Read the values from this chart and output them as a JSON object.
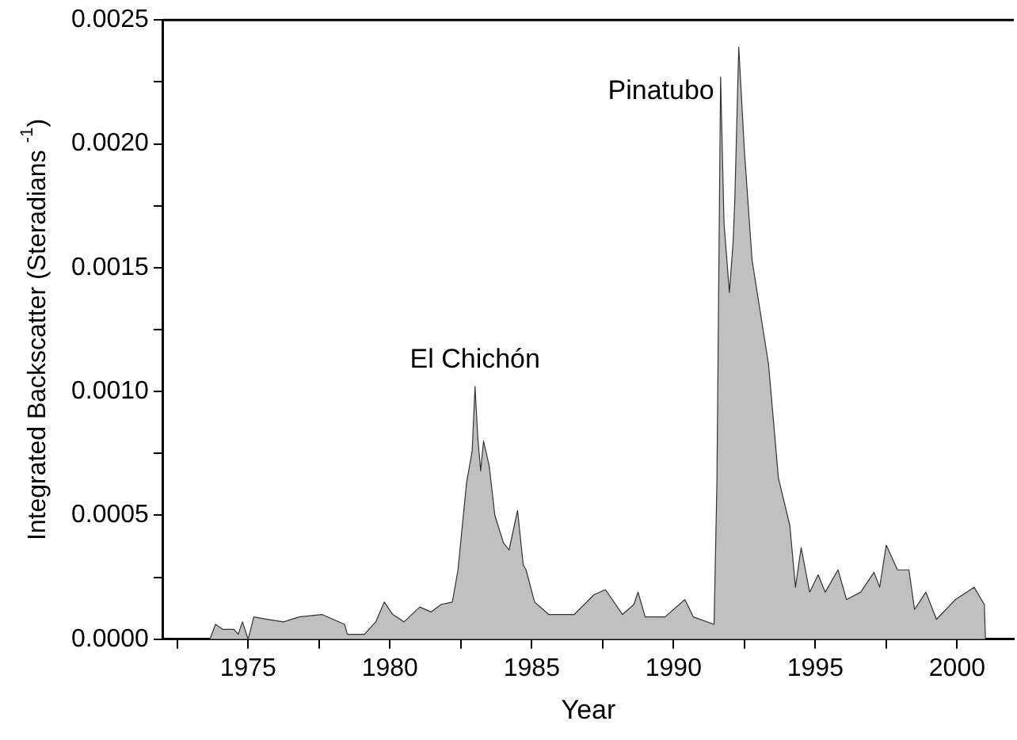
{
  "chart_data": {
    "type": "area",
    "xlabel": "Year",
    "ylabel": "Integrated Backscatter (Steradians $^{-1}$)",
    "x": [
      1972.3,
      1973.65,
      1973.85,
      1974.1,
      1974.5,
      1974.65,
      1974.8,
      1975.0,
      1975.2,
      1975.7,
      1976.25,
      1976.8,
      1977.6,
      1978.4,
      1978.5,
      1979.1,
      1979.5,
      1979.8,
      1980.1,
      1980.5,
      1981.05,
      1981.45,
      1981.8,
      1982.2,
      1982.4,
      1982.7,
      1982.9,
      1983.0,
      1983.1,
      1983.2,
      1983.3,
      1983.5,
      1983.7,
      1984.0,
      1984.2,
      1984.5,
      1984.7,
      1984.8,
      1985.1,
      1985.6,
      1986.5,
      1987.2,
      1987.6,
      1988.2,
      1988.6,
      1988.75,
      1989.0,
      1989.7,
      1990.4,
      1990.7,
      1991.43,
      1991.53,
      1991.66,
      1991.78,
      1991.97,
      1992.1,
      1992.16,
      1992.3,
      1992.5,
      1992.77,
      1993.35,
      1993.7,
      1994.1,
      1994.3,
      1994.5,
      1994.8,
      1995.1,
      1995.35,
      1995.8,
      1996.1,
      1996.6,
      1997.07,
      1997.27,
      1997.5,
      1997.9,
      1998.3,
      1998.5,
      1998.9,
      1999.27,
      1999.94,
      2000.6,
      2000.96,
      2001.0
    ],
    "series": [
      {
        "color": "#c0c0c0",
        "values": [
          0,
          0,
          6e-05,
          4e-05,
          4e-05,
          2e-05,
          7e-05,
          0,
          9e-05,
          8e-05,
          7e-05,
          9e-05,
          0.0001,
          6e-05,
          2e-05,
          2e-05,
          7e-05,
          0.00015,
          0.0001,
          7e-05,
          0.00013,
          0.00011,
          0.00014,
          0.00015,
          0.00028,
          0.00063,
          0.00076,
          0.00102,
          0.00081,
          0.00068,
          0.0008,
          0.0007,
          0.0005,
          0.00039,
          0.00036,
          0.00052,
          0.0003,
          0.00028,
          0.00015,
          0.0001,
          0.0001,
          0.00018,
          0.0002,
          0.0001,
          0.00014,
          0.00019,
          9e-05,
          9e-05,
          0.00016,
          9e-05,
          6e-05,
          0.00063,
          0.00227,
          0.00168,
          0.0014,
          0.0016,
          0.00177,
          0.00239,
          0.00197,
          0.00153,
          0.00111,
          0.00065,
          0.00046,
          0.00021,
          0.00037,
          0.00019,
          0.00026,
          0.00019,
          0.00028,
          0.00016,
          0.00019,
          0.00027,
          0.00021,
          0.00038,
          0.00028,
          0.00028,
          0.00012,
          0.00019,
          8e-05,
          0.00016,
          0.00021,
          0.00014,
          0
        ]
      }
    ],
    "xlim": [
      1972,
      2002
    ],
    "xticks": [
      {
        "value": 1972.5,
        "label": null
      },
      1975,
      {
        "value": 1977.5,
        "label": null
      },
      1980,
      {
        "value": 1982.5,
        "label": null
      },
      1985,
      {
        "value": 1987.5,
        "label": null
      },
      1990,
      {
        "value": 1992.5,
        "label": null
      },
      1995,
      {
        "value": 1997.5,
        "label": null
      },
      2000
    ],
    "ylim": [
      0,
      0.0025
    ],
    "yticks": [
      {
        "value": 0,
        "label": "0.0000"
      },
      {
        "value": 0.00025,
        "label": null
      },
      {
        "value": 0.0005,
        "label": "0.0005"
      },
      {
        "value": 0.00075,
        "label": null
      },
      {
        "value": 0.001,
        "label": "0.0010"
      },
      {
        "value": 0.00125,
        "label": null
      },
      {
        "value": 0.0015,
        "label": "0.0015"
      },
      {
        "value": 0.00175,
        "label": null
      },
      {
        "value": 0.002,
        "label": "0.0020"
      },
      {
        "value": 0.00225,
        "label": null
      },
      {
        "value": 0.0025,
        "label": "0.0025"
      }
    ],
    "annotations": [
      {
        "text": "El Chichón",
        "x": 1983.0,
        "y": 0.00102
      },
      {
        "text": "Pinatubo",
        "x": 1991.66,
        "y": 0.00227
      }
    ],
    "grid": false,
    "legend": false
  }
}
